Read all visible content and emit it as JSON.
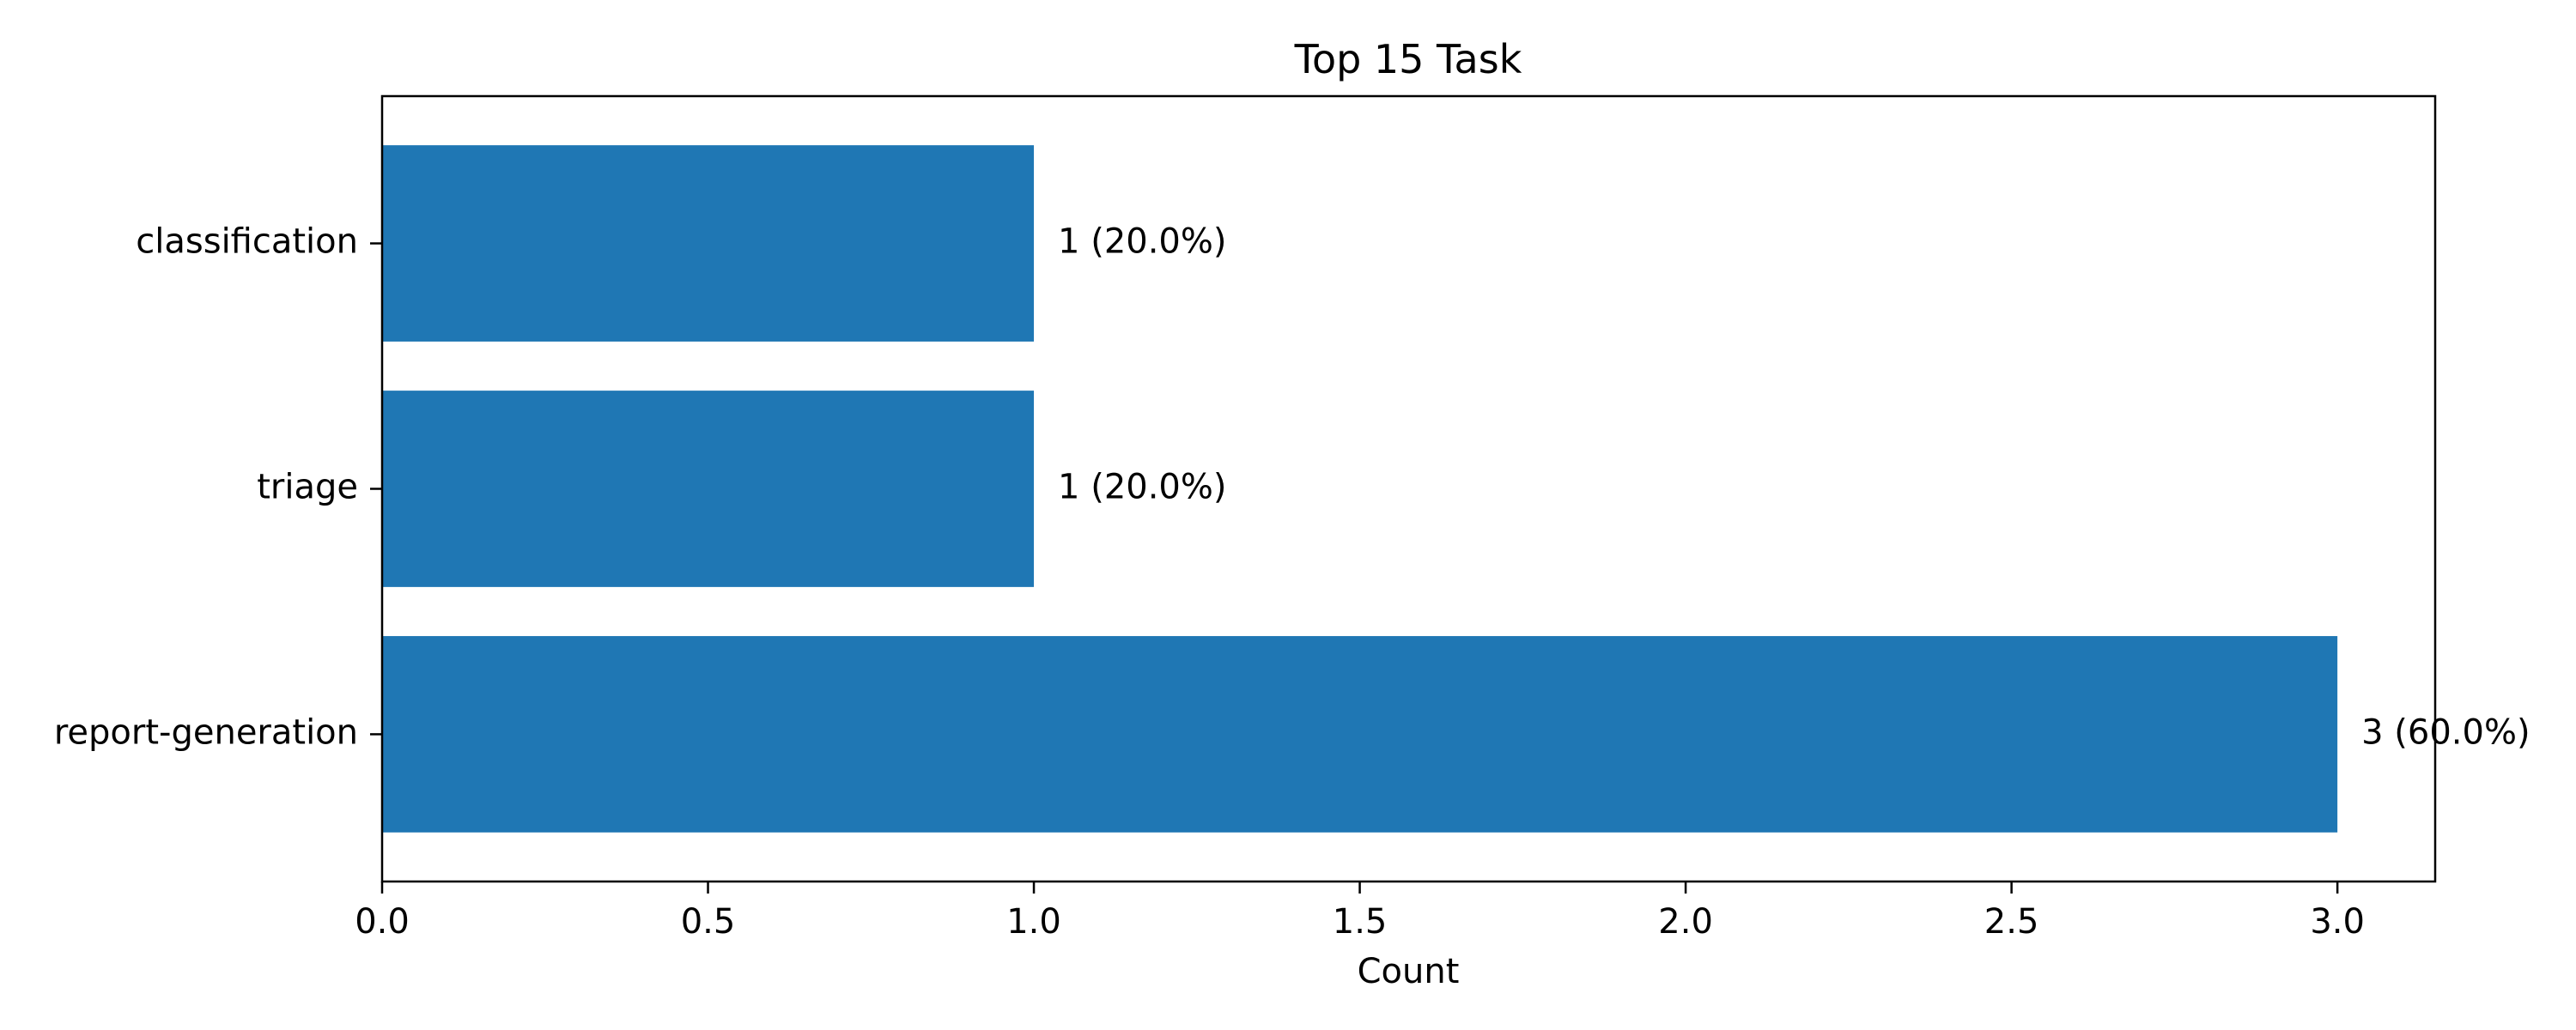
{
  "chart_data": {
    "type": "bar",
    "orientation": "horizontal",
    "title": "Top 15 Task",
    "xlabel": "Count",
    "ylabel": "",
    "categories": [
      "classification",
      "triage",
      "report-generation"
    ],
    "values": [
      1,
      1,
      3
    ],
    "data_labels": [
      "1 (20.0%)",
      "1 (20.0%)",
      "3 (60.0%)"
    ],
    "xlim": [
      0,
      3.15
    ],
    "xticks": [
      0,
      0.5,
      1,
      1.5,
      2,
      2.5,
      3
    ],
    "xtick_labels": [
      "0.0",
      "0.5",
      "1.0",
      "1.5",
      "2.0",
      "2.5",
      "3.0"
    ],
    "grid": false,
    "legend": "none",
    "colors": {
      "bar": "#1f77b4"
    }
  }
}
